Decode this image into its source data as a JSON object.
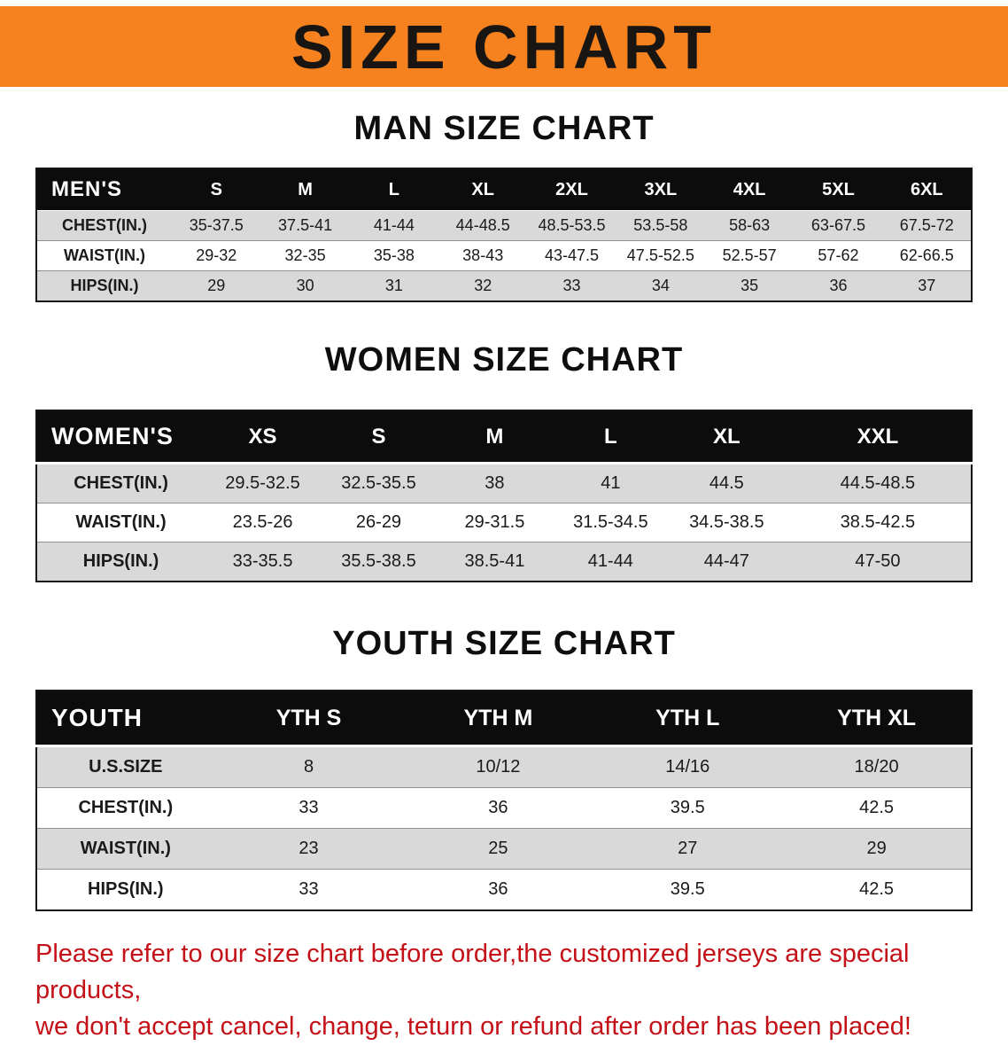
{
  "banner": {
    "title": "SIZE CHART",
    "bg_color": "#F5821F",
    "text_color": "#181512"
  },
  "sections": [
    {
      "heading": "MAN SIZE CHART",
      "table": {
        "name": "men",
        "header": [
          "MEN'S",
          "S",
          "M",
          "L",
          "XL",
          "2XL",
          "3XL",
          "4XL",
          "5XL",
          "6XL"
        ],
        "rows": [
          {
            "label": "CHEST(IN.)",
            "values": [
              "35-37.5",
              "37.5-41",
              "41-44",
              "44-48.5",
              "48.5-53.5",
              "53.5-58",
              "58-63",
              "63-67.5",
              "67.5-72"
            ]
          },
          {
            "label": "WAIST(IN.)",
            "values": [
              "29-32",
              "32-35",
              "35-38",
              "38-43",
              "43-47.5",
              "47.5-52.5",
              "52.5-57",
              "57-62",
              "62-66.5"
            ]
          },
          {
            "label": "HIPS(IN.)",
            "values": [
              "29",
              "30",
              "31",
              "32",
              "33",
              "34",
              "35",
              "36",
              "37"
            ]
          }
        ]
      }
    },
    {
      "heading": "WOMEN SIZE CHART",
      "table": {
        "name": "women",
        "header": [
          "WOMEN'S",
          "XS",
          "S",
          "M",
          "L",
          "XL",
          "XXL"
        ],
        "rows": [
          {
            "label": "CHEST(IN.)",
            "values": [
              "29.5-32.5",
              "32.5-35.5",
              "38",
              "41",
              "44.5",
              "44.5-48.5"
            ]
          },
          {
            "label": "WAIST(IN.)",
            "values": [
              "23.5-26",
              "26-29",
              "29-31.5",
              "31.5-34.5",
              "34.5-38.5",
              "38.5-42.5"
            ]
          },
          {
            "label": "HIPS(IN.)",
            "values": [
              "33-35.5",
              "35.5-38.5",
              "38.5-41",
              "41-44",
              "44-47",
              "47-50"
            ]
          }
        ]
      }
    },
    {
      "heading": "YOUTH SIZE CHART",
      "table": {
        "name": "youth",
        "header": [
          "YOUTH",
          "YTH S",
          "YTH M",
          "YTH L",
          "YTH XL"
        ],
        "rows": [
          {
            "label": "U.S.SIZE",
            "values": [
              "8",
              "10/12",
              "14/16",
              "18/20"
            ]
          },
          {
            "label": "CHEST(IN.)",
            "values": [
              "33",
              "36",
              "39.5",
              "42.5"
            ]
          },
          {
            "label": "WAIST(IN.)",
            "values": [
              "23",
              "25",
              "27",
              "29"
            ]
          },
          {
            "label": "HIPS(IN.)",
            "values": [
              "33",
              "36",
              "39.5",
              "42.5"
            ]
          }
        ]
      }
    }
  ],
  "disclaimer": {
    "line1": "Please refer to our size chart before order,the customized jerseys are special products,",
    "line2": "we don't accept cancel, change, teturn or refund after order has been placed!",
    "color": "#C41017"
  }
}
